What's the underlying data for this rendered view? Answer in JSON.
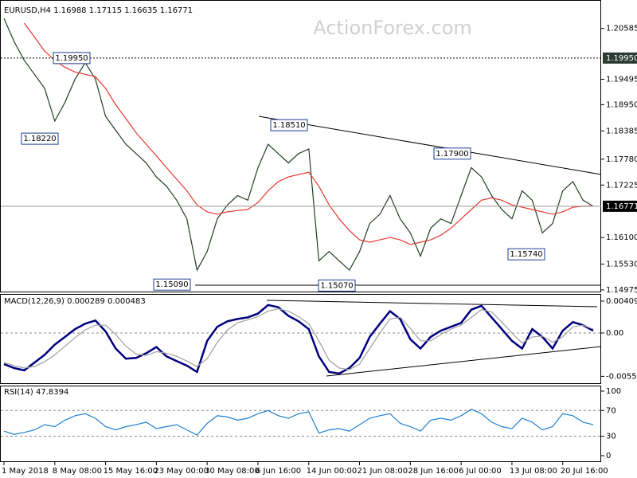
{
  "chart_data": [
    {
      "type": "line",
      "title": "EURUSD,H4  1.16988 1.17115 1.16635 1.16771",
      "watermark": "ActionForex.com",
      "categories": [
        "1 May 2018",
        null,
        null,
        null,
        null,
        "8 May 08:00",
        null,
        null,
        null,
        null,
        "15 May 16:00",
        null,
        null,
        null,
        null,
        "23 May 00:00",
        null,
        null,
        null,
        null,
        "30 May 08:00",
        null,
        null,
        null,
        null,
        "6 Jun 16:00",
        null,
        null,
        null,
        null,
        "14 Jun 00:00",
        null,
        null,
        null,
        null,
        "21 Jun 08:00",
        null,
        null,
        null,
        null,
        "28 Jun 16:00",
        null,
        null,
        null,
        null,
        "6 Jul 00:00",
        null,
        null,
        null,
        null,
        "13 Jul 08:00",
        null,
        null,
        null,
        null,
        "20 Jul 16:00",
        null,
        null,
        null
      ],
      "series": [
        {
          "color": "#1f3f1f",
          "values": [
            1.208,
            1.203,
            1.199,
            1.196,
            1.193,
            1.186,
            1.19,
            1.195,
            1.1985,
            1.195,
            1.187,
            1.184,
            1.181,
            1.179,
            1.177,
            1.174,
            1.172,
            1.169,
            1.165,
            1.154,
            1.158,
            1.165,
            1.168,
            1.17,
            1.169,
            1.176,
            1.181,
            1.179,
            1.177,
            1.179,
            1.18,
            1.156,
            1.158,
            1.156,
            1.154,
            1.158,
            1.164,
            1.166,
            1.17,
            1.165,
            1.162,
            1.157,
            1.163,
            1.165,
            1.164,
            1.17,
            1.176,
            1.174,
            1.17,
            1.167,
            1.165,
            1.171,
            1.169,
            1.162,
            1.164,
            1.171,
            1.173,
            1.169,
            1.1677
          ]
        },
        {
          "color": "#e8382f",
          "values": [
            null,
            null,
            1.207,
            1.204,
            1.201,
            1.199,
            1.1975,
            1.1965,
            1.196,
            1.1955,
            1.193,
            1.1895,
            1.1865,
            1.1835,
            1.181,
            1.1785,
            1.176,
            1.1735,
            1.171,
            1.168,
            1.1665,
            1.166,
            1.1665,
            1.1668,
            1.167,
            1.1685,
            1.171,
            1.173,
            1.174,
            1.1745,
            1.175,
            1.172,
            1.168,
            1.165,
            1.1625,
            1.1605,
            1.16,
            1.1605,
            1.161,
            1.1605,
            1.1595,
            1.16,
            1.1605,
            1.1615,
            1.163,
            1.165,
            1.167,
            1.169,
            1.1695,
            1.169,
            1.168,
            1.1675,
            1.167,
            1.1665,
            1.166,
            1.1665,
            1.1675,
            1.1677,
            1.1678
          ]
        }
      ],
      "ylim": [
        1.1494,
        1.2111
      ],
      "yticks": [
        1.20585,
        1.19495,
        {
          "value": 1.1895,
          "label": "1.18950"
        },
        1.18385,
        {
          "value": 1.1778,
          "label": "1.17780"
        },
        1.17225,
        {
          "value": 1.161,
          "label": "1.16100"
        },
        {
          "value": 1.1553,
          "label": "1.15530"
        },
        1.14975
      ],
      "hlines": [
        {
          "value": 1.1995,
          "label": "1.19950",
          "style": "dotted"
        },
        {
          "value": 1.16771,
          "label": "1.16771",
          "style": "solid"
        }
      ],
      "annotations": [
        {
          "value": 1.1995,
          "label": "1.19950"
        },
        {
          "value": 1.1822,
          "label": "1.18220"
        },
        {
          "value": 1.1851,
          "label": "1.18510"
        },
        {
          "value": 1.179,
          "label": "1.17900"
        },
        {
          "value": 1.1574,
          "label": "1.15740"
        },
        {
          "value": 1.1509,
          "label": "1.15090"
        },
        {
          "value": 1.1507,
          "label": "1.15070"
        }
      ]
    },
    {
      "type": "line",
      "title": "MACD(12,26,9) 0.000289 0.000483",
      "series": [
        {
          "color": "#00007f",
          "values": [
            -0.004,
            -0.0045,
            -0.0048,
            -0.0038,
            -0.0028,
            -0.0015,
            -0.0005,
            0.0005,
            0.0012,
            0.0016,
            0.0002,
            -0.002,
            -0.0033,
            -0.0032,
            -0.0026,
            -0.0018,
            -0.003,
            -0.0036,
            -0.0042,
            -0.005,
            -0.001,
            0.0008,
            0.0015,
            0.0018,
            0.002,
            0.0025,
            0.0036,
            0.0033,
            0.0022,
            0.0015,
            0.0005,
            -0.003,
            -0.005,
            -0.0052,
            -0.0045,
            -0.0032,
            -0.0005,
            0.0012,
            0.0028,
            0.0018,
            -0.0008,
            -0.002,
            -0.0005,
            0.0003,
            0.0008,
            0.0013,
            0.003,
            0.0035,
            0.002,
            0.0005,
            -0.001,
            -0.002,
            0.0005,
            -0.0005,
            -0.002,
            0.0003,
            0.0014,
            0.001,
            0.0003
          ]
        },
        {
          "color": "#a0a0a0",
          "values": [
            -0.0038,
            -0.0042,
            -0.0045,
            -0.0043,
            -0.0037,
            -0.0028,
            -0.0017,
            -0.0006,
            0.0004,
            0.001,
            0.001,
            -0.0002,
            -0.0017,
            -0.0027,
            -0.0029,
            -0.0024,
            -0.0026,
            -0.003,
            -0.0036,
            -0.0043,
            -0.0033,
            -0.0012,
            0.0004,
            0.0013,
            0.0017,
            0.0021,
            0.0028,
            0.0031,
            0.0028,
            0.0021,
            0.0012,
            -0.001,
            -0.0035,
            -0.0045,
            -0.0047,
            -0.004,
            -0.002,
            0.0,
            0.0018,
            0.002,
            0.0006,
            -0.001,
            -0.001,
            -0.0002,
            0.0005,
            0.001,
            0.002,
            0.003,
            0.0027,
            0.0014,
            0.0,
            -0.0013,
            -0.0005,
            -0.0004,
            -0.0012,
            -0.0005,
            0.0008,
            0.001,
            0.0005
          ]
        }
      ],
      "ylim": [
        -0.00655,
        0.00491
      ],
      "yticks": [
        0.004094,
        {
          "value": 0,
          "label": "0.00"
        },
        -0.005568
      ],
      "levels": [
        0
      ]
    },
    {
      "type": "line",
      "title": "RSI(14) 47.8394",
      "series": [
        {
          "color": "#1e7fd0",
          "values": [
            38,
            33,
            36,
            40,
            48,
            45,
            55,
            62,
            65,
            58,
            45,
            40,
            45,
            48,
            52,
            42,
            45,
            48,
            40,
            32,
            50,
            62,
            60,
            55,
            58,
            65,
            70,
            62,
            58,
            65,
            68,
            35,
            40,
            42,
            38,
            48,
            58,
            62,
            65,
            50,
            45,
            38,
            55,
            58,
            55,
            62,
            72,
            65,
            52,
            45,
            42,
            58,
            52,
            40,
            45,
            65,
            62,
            52,
            48
          ]
        }
      ],
      "ylim": [
        -9.9,
        108.6
      ],
      "yticks": [
        100,
        70,
        30,
        0
      ],
      "levels": [
        70,
        30
      ]
    }
  ]
}
